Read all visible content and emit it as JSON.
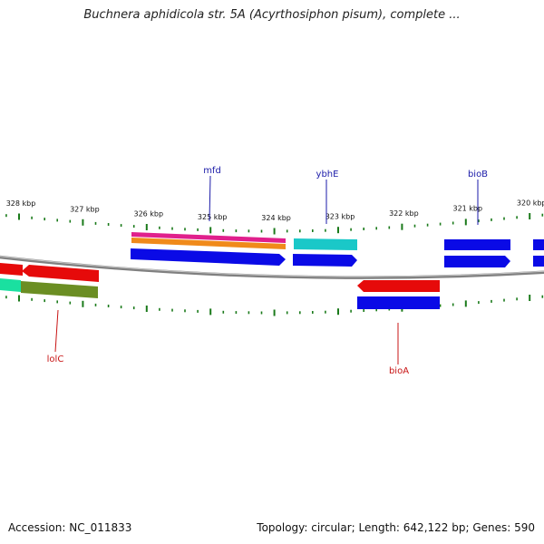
{
  "header": {
    "title": "Buchnera aphidicola str. 5A (Acyrthosiphon pisum), complete ..."
  },
  "footer": {
    "accession": "Accession: NC_011833",
    "topology": "Topology: circular; Length: 642,122 bp; Genes: 590"
  },
  "ruler": {
    "labels": [
      "328 kbp",
      "327 kbp",
      "326 kbp",
      "325 kbp",
      "324 kbp",
      "323 kbp",
      "322 kbp",
      "321 kbp",
      "320 kbp"
    ],
    "tick_color": "#1a7a1a"
  },
  "colors": {
    "backbone": "#808080",
    "gene_blue": "#0a0ae6",
    "gene_red": "#e60a0a",
    "gene_cyan": "#1ac8c8",
    "gene_magenta": "#e0208c",
    "gene_orange": "#f08a1a",
    "gene_olive": "#6b8e23",
    "gene_teal": "#1ae0a0",
    "label_blue": "#1a1aa8",
    "label_red": "#c81414"
  },
  "gene_labels": [
    {
      "name": "mfd",
      "color": "label_blue"
    },
    {
      "name": "ybhE",
      "color": "label_blue"
    },
    {
      "name": "bioB",
      "color": "label_blue"
    },
    {
      "name": "lolC",
      "color": "label_red"
    },
    {
      "name": "bioA",
      "color": "label_red"
    }
  ]
}
